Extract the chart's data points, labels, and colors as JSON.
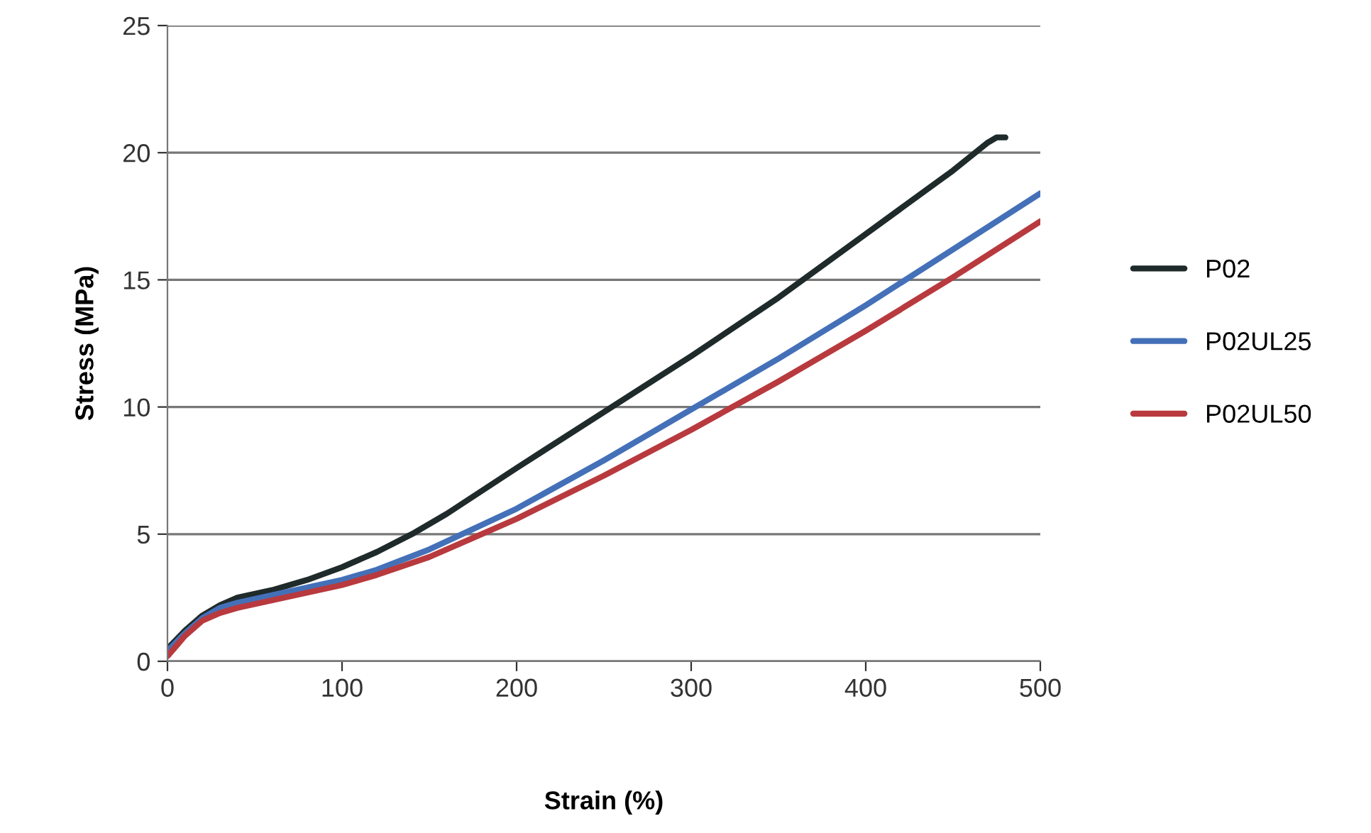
{
  "chart_data": {
    "type": "line",
    "xlabel": "Strain (%)",
    "ylabel": "Stress (MPa)",
    "xlim": [
      0,
      500
    ],
    "xticks": [
      0,
      100,
      200,
      300,
      400,
      500
    ],
    "ylim": [
      0,
      25
    ],
    "yticks": [
      0,
      5,
      10,
      15,
      20,
      25
    ],
    "grid": "y",
    "legend": "right",
    "marker": "none",
    "line_style": "solid",
    "series": [
      {
        "name": "P02",
        "color": "#1f2a2a",
        "x": [
          0,
          10,
          20,
          30,
          40,
          60,
          80,
          100,
          120,
          140,
          160,
          200,
          250,
          300,
          350,
          400,
          450,
          470,
          475,
          480
        ],
        "values": [
          0.5,
          1.2,
          1.8,
          2.2,
          2.5,
          2.8,
          3.2,
          3.7,
          4.3,
          5.0,
          5.8,
          7.6,
          9.8,
          12.0,
          14.3,
          16.8,
          19.3,
          20.4,
          20.6,
          20.6
        ]
      },
      {
        "name": "P02UL25",
        "color": "#4470b8",
        "x": [
          0,
          10,
          20,
          30,
          40,
          60,
          80,
          100,
          120,
          150,
          200,
          250,
          300,
          350,
          400,
          450,
          500
        ],
        "values": [
          0.4,
          1.1,
          1.7,
          2.1,
          2.3,
          2.6,
          2.9,
          3.2,
          3.6,
          4.4,
          6.0,
          7.9,
          9.9,
          11.9,
          14.0,
          16.2,
          18.4
        ]
      },
      {
        "name": "P02UL50",
        "color": "#b83a3e",
        "x": [
          0,
          10,
          20,
          30,
          40,
          60,
          80,
          100,
          120,
          150,
          200,
          250,
          300,
          350,
          400,
          450,
          500
        ],
        "values": [
          0.2,
          1.0,
          1.6,
          1.9,
          2.1,
          2.4,
          2.7,
          3.0,
          3.4,
          4.1,
          5.6,
          7.3,
          9.1,
          11.0,
          13.0,
          15.1,
          17.3
        ]
      }
    ]
  }
}
